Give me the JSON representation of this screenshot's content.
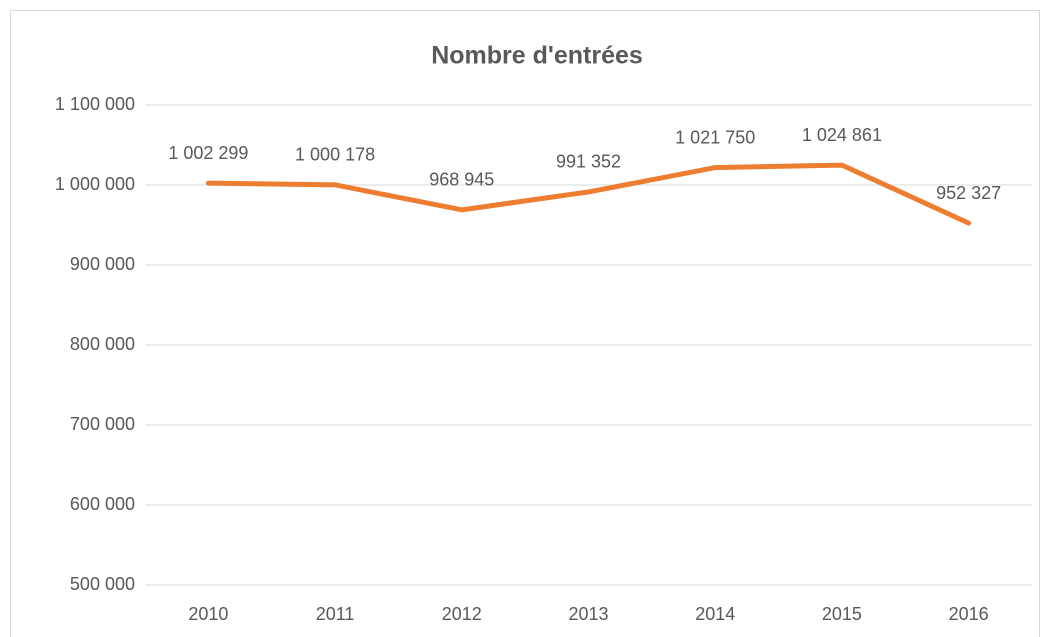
{
  "chart_data": {
    "type": "line",
    "title": "Nombre d'entrées",
    "categories": [
      "2010",
      "2011",
      "2012",
      "2013",
      "2014",
      "2015",
      "2016"
    ],
    "series": [
      {
        "name": "Nombre d'entrées",
        "color": "#ed7d31",
        "values": [
          1002299,
          1000178,
          968945,
          991352,
          1021750,
          1024861,
          952327
        ],
        "value_labels": [
          "1 002 299",
          "1 000 178",
          "968 945",
          "991 352",
          "1 021 750",
          "1 024 861",
          "952 327"
        ]
      }
    ],
    "ylim": [
      500000,
      1100000
    ],
    "yticks": [
      {
        "value": 500000,
        "label": "500 000"
      },
      {
        "value": 600000,
        "label": "600 000"
      },
      {
        "value": 700000,
        "label": "700 000"
      },
      {
        "value": 800000,
        "label": "800 000"
      },
      {
        "value": 900000,
        "label": "900 000"
      },
      {
        "value": 1000000,
        "label": "1 000 000"
      },
      {
        "value": 1100000,
        "label": "1 100 000"
      }
    ],
    "grid": true
  }
}
